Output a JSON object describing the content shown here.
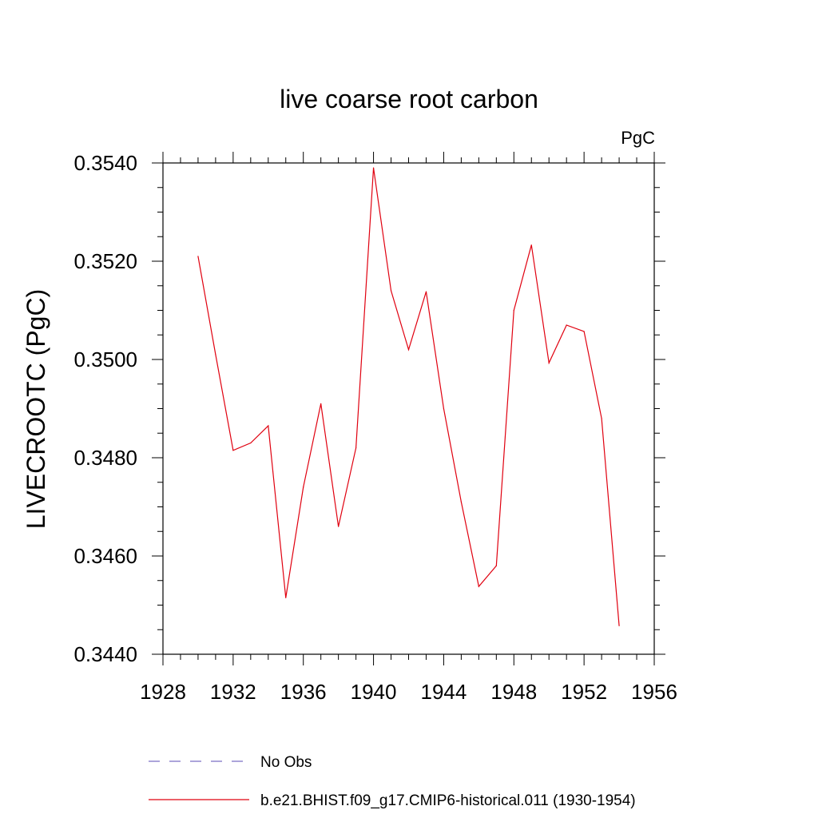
{
  "chart_data": {
    "type": "line",
    "title": "live coarse root carbon",
    "units_label": "PgC",
    "ylabel": "LIVECROOTC  (PgC)",
    "xlabel": "",
    "xlim": [
      1928,
      1956
    ],
    "ylim": [
      0.344,
      0.354
    ],
    "x_ticks": [
      "1928",
      "1932",
      "1936",
      "1940",
      "1944",
      "1948",
      "1952",
      "1956"
    ],
    "y_ticks": [
      "0.3440",
      "0.3460",
      "0.3480",
      "0.3500",
      "0.3520",
      "0.3540"
    ],
    "grid": false,
    "legend_position": "bottom",
    "series": [
      {
        "name": "b.e21.BHIST.f09_g17.CMIP6-historical.011 (1930-1954)",
        "color": "#e0000f",
        "style": "solid",
        "x": [
          1930,
          1931,
          1932,
          1933,
          1934,
          1935,
          1936,
          1937,
          1938,
          1939,
          1940,
          1941,
          1942,
          1943,
          1944,
          1945,
          1946,
          1947,
          1948,
          1949,
          1950,
          1951,
          1952,
          1953,
          1954
        ],
        "y": [
          0.3521,
          0.3501,
          0.34815,
          0.3483,
          0.34865,
          0.34515,
          0.3474,
          0.3491,
          0.3466,
          0.3482,
          0.3539,
          0.3514,
          0.3502,
          0.35138,
          0.349,
          0.3471,
          0.34538,
          0.3458,
          0.351,
          0.35233,
          0.34993,
          0.3507,
          0.35057,
          0.3488,
          0.34458
        ]
      }
    ],
    "legend": [
      {
        "label": "No Obs",
        "color": "#7a6fc4",
        "style": "dashed"
      },
      {
        "label": "b.e21.BHIST.f09_g17.CMIP6-historical.011 (1930-1954)",
        "color": "#e0000f",
        "style": "solid"
      }
    ]
  }
}
